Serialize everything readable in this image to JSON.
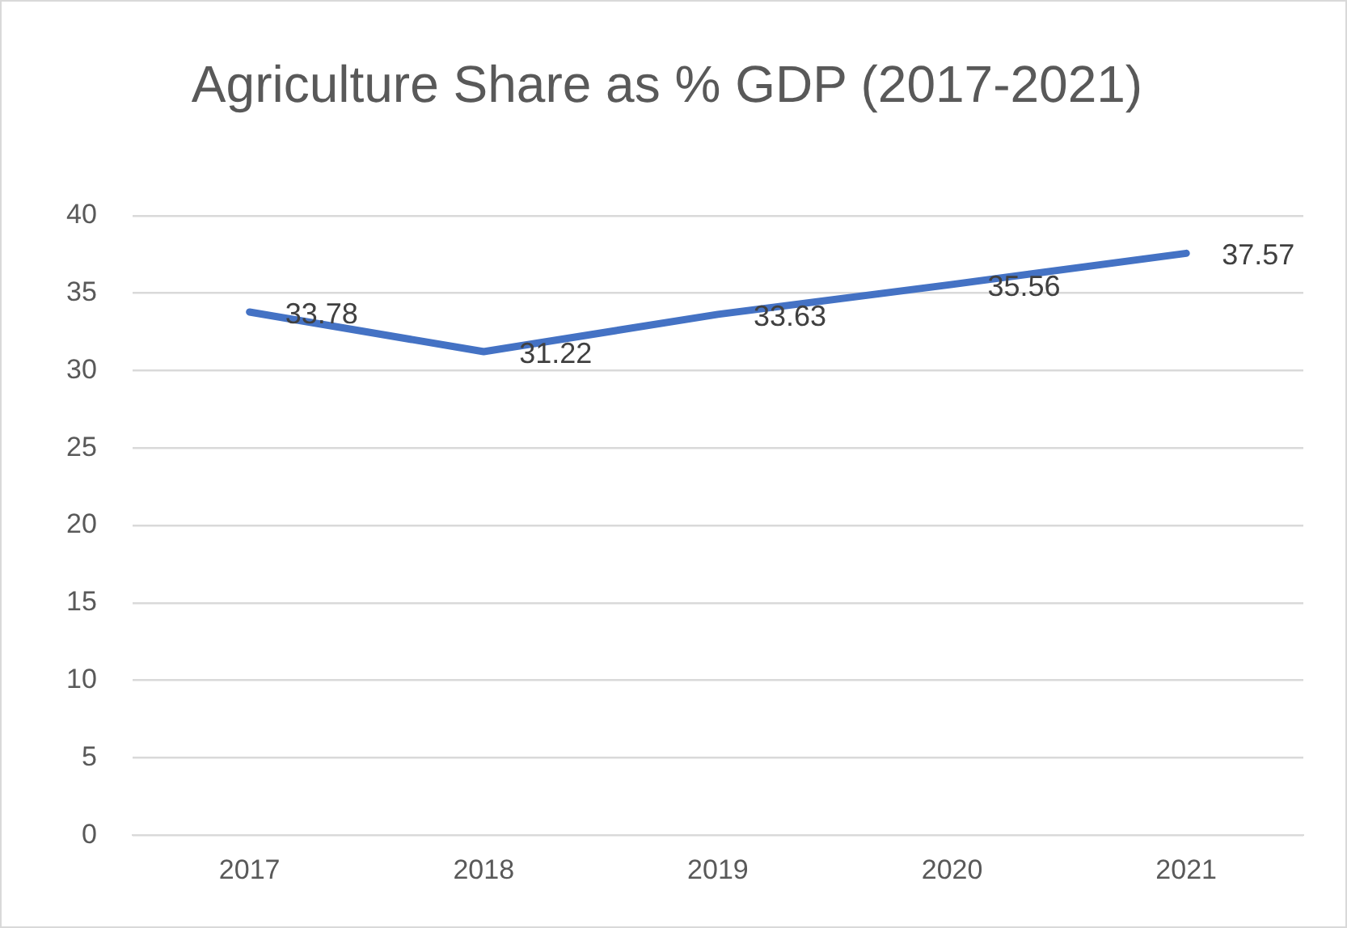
{
  "chart_data": {
    "type": "line",
    "title": "Agriculture Share as % GDP (2017-2021)",
    "categories": [
      "2017",
      "2018",
      "2019",
      "2020",
      "2021"
    ],
    "series": [
      {
        "color": "#4472c4",
        "values": [
          33.78,
          31.22,
          33.63,
          35.56,
          37.57
        ]
      }
    ],
    "ylim": [
      0,
      40
    ],
    "yticks": [
      0,
      5,
      10,
      15,
      20,
      25,
      30,
      35,
      40
    ],
    "grid": "y",
    "legend": false,
    "marker": "none",
    "data_labels": true
  }
}
